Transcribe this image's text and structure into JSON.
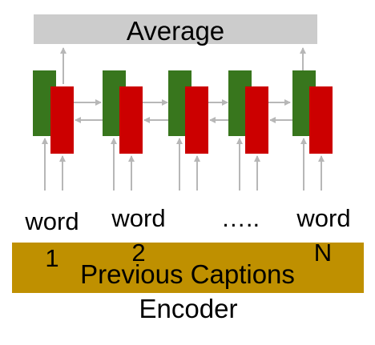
{
  "top_bar": {
    "label": "Average"
  },
  "words": [
    {
      "line1": "word",
      "line2": "1"
    },
    {
      "line1": "word",
      "line2": "2"
    },
    {
      "line1": "…..",
      "line2": ""
    },
    {
      "line1": "word",
      "line2": "N"
    }
  ],
  "bottom_bar": {
    "label": "Previous Captions"
  },
  "caption": "Encoder",
  "colors": {
    "average_bar": "#cccccc",
    "forward_lstm": "#38761d",
    "backward_lstm": "#cc0000",
    "encoder_bar": "#bf9000",
    "arrows": "#b7b7b7"
  }
}
